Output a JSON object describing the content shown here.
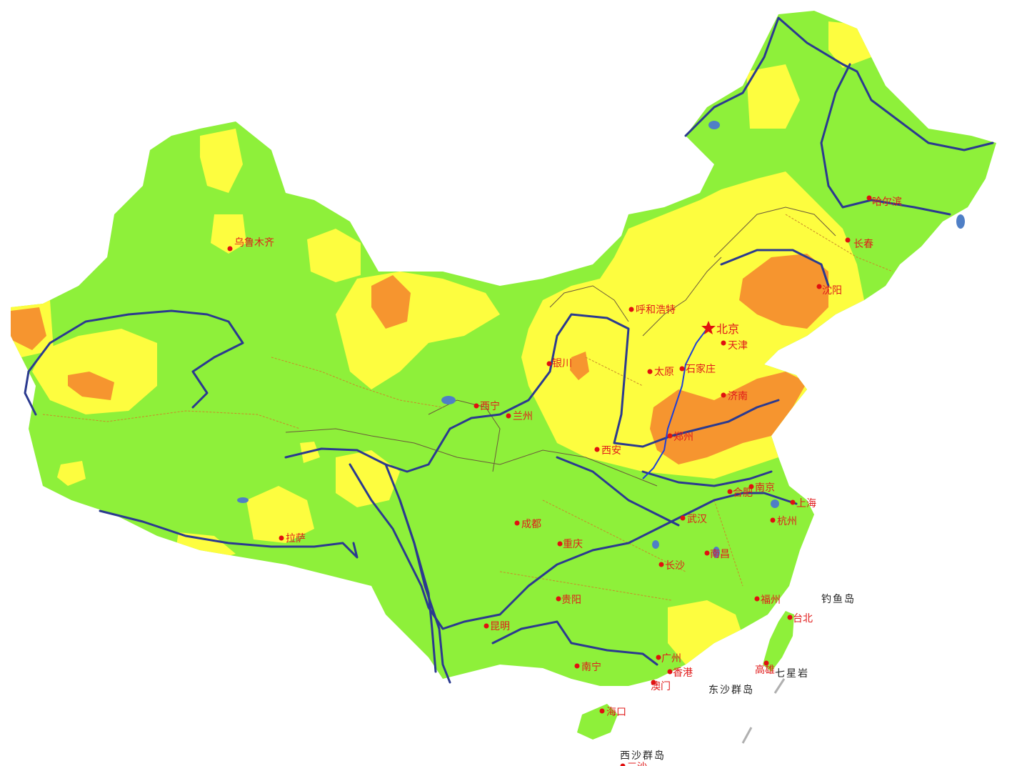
{
  "colors": {
    "background": "#ffffff",
    "level_low": "#8ef03a",
    "level_mid": "#fdfd3f",
    "level_high": "#f6952f",
    "river": "#2b3a8f",
    "lake": "#4f7fc6",
    "border_province": "#c98a2a",
    "border_region": "#6b5a3a",
    "grand_canal": "#1f3fd6",
    "city_dot": "#e01010",
    "city_text": "#e01b1b",
    "island_text": "#222222"
  },
  "capital": {
    "name": "北京",
    "marker": "star"
  },
  "cities": [
    {
      "id": "urumqi",
      "name": "乌鲁木齐"
    },
    {
      "id": "harbin",
      "name": "哈尔滨"
    },
    {
      "id": "changchun",
      "name": "长春"
    },
    {
      "id": "shenyang",
      "name": "沈阳"
    },
    {
      "id": "hohhot",
      "name": "呼和浩特"
    },
    {
      "id": "tianjin",
      "name": "天津"
    },
    {
      "id": "shijiazhuang",
      "name": "石家庄"
    },
    {
      "id": "taiyuan",
      "name": "太原"
    },
    {
      "id": "yinchuan",
      "name": "银川"
    },
    {
      "id": "jinan",
      "name": "济南"
    },
    {
      "id": "xining",
      "name": "西宁"
    },
    {
      "id": "lanzhou",
      "name": "兰州"
    },
    {
      "id": "zhengzhou",
      "name": "郑州"
    },
    {
      "id": "xian",
      "name": "西安"
    },
    {
      "id": "hefei",
      "name": "合肥"
    },
    {
      "id": "nanjing",
      "name": "南京"
    },
    {
      "id": "shanghai",
      "name": "上海"
    },
    {
      "id": "hangzhou",
      "name": "杭州"
    },
    {
      "id": "wuhan",
      "name": "武汉"
    },
    {
      "id": "chengdu",
      "name": "成都"
    },
    {
      "id": "lhasa",
      "name": "拉萨"
    },
    {
      "id": "chongqing",
      "name": "重庆"
    },
    {
      "id": "nanchang",
      "name": "南昌"
    },
    {
      "id": "changsha",
      "name": "长沙"
    },
    {
      "id": "fuzhou",
      "name": "福州"
    },
    {
      "id": "taipei",
      "name": "台北"
    },
    {
      "id": "guiyang",
      "name": "贵阳"
    },
    {
      "id": "kunming",
      "name": "昆明"
    },
    {
      "id": "guangzhou",
      "name": "广州"
    },
    {
      "id": "hongkong",
      "name": "香港"
    },
    {
      "id": "macau",
      "name": "澳门"
    },
    {
      "id": "nanning",
      "name": "南宁"
    },
    {
      "id": "kaohsiung",
      "name": "高雄"
    },
    {
      "id": "haikou",
      "name": "海口"
    },
    {
      "id": "sansha",
      "name": "三沙"
    }
  ],
  "islands": {
    "diaoyu": "钓鱼岛",
    "chiwei": "七星岩",
    "dongsha": "东沙群岛",
    "xisha": "西沙群岛"
  }
}
